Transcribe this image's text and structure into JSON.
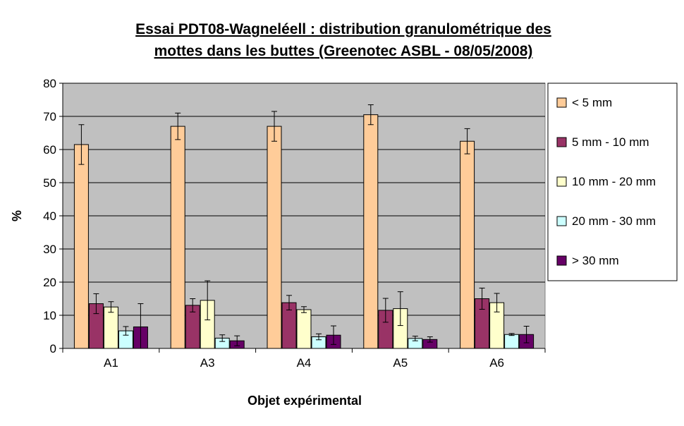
{
  "chart_data": {
    "type": "bar",
    "title_lines": [
      "Essai PDT08-Wagneléell : distribution granulométrique des",
      "mottes dans les buttes (Greenotec ASBL - 08/05/2008)"
    ],
    "xlabel": "Objet expérimental",
    "ylabel": "%",
    "ylim": [
      0,
      80
    ],
    "yticks": [
      0,
      10,
      20,
      30,
      40,
      50,
      60,
      70,
      80
    ],
    "grid": true,
    "legend_position": "right",
    "categories": [
      "A1",
      "A3",
      "A4",
      "A5",
      "A6"
    ],
    "series": [
      {
        "name": "< 5 mm",
        "color": "#FFCC99",
        "values": [
          61.5,
          67,
          67,
          70.5,
          62.5
        ],
        "errors": [
          6,
          4,
          4.5,
          3,
          3.8
        ]
      },
      {
        "name": "5 mm - 10 mm",
        "color": "#993366",
        "values": [
          13.5,
          13,
          13.8,
          11.5,
          15
        ],
        "errors": [
          3,
          2,
          2.2,
          3.6,
          3.2
        ]
      },
      {
        "name": "10 mm - 20 mm",
        "color": "#FFFFCC",
        "values": [
          12.5,
          14.5,
          11.7,
          12,
          13.8
        ],
        "errors": [
          1.6,
          5.9,
          0.9,
          5.1,
          2.8
        ]
      },
      {
        "name": "20 mm - 30 mm",
        "color": "#CCFFFF",
        "values": [
          5.3,
          3.1,
          3.5,
          3,
          4.2
        ],
        "errors": [
          1.3,
          1,
          0.9,
          0.7,
          0.3
        ]
      },
      {
        "name": "> 30 mm",
        "color": "#660066",
        "values": [
          6.5,
          2.3,
          4,
          2.7,
          4.2
        ],
        "errors": [
          7,
          1.5,
          2.8,
          0.8,
          2.5
        ]
      }
    ]
  }
}
